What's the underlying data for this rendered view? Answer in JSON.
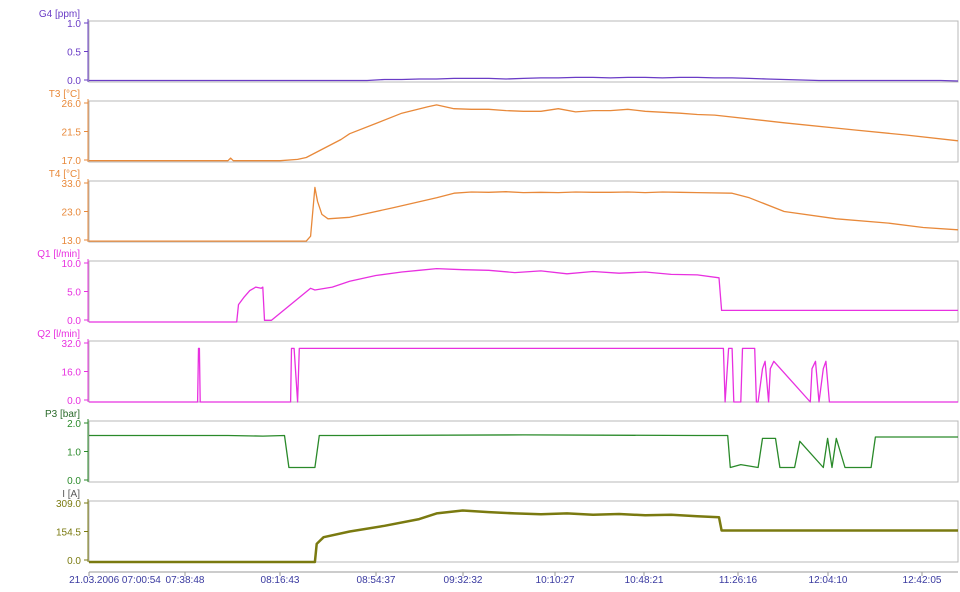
{
  "chart_data": [
    {
      "type": "line",
      "ylabel": "G4 [ppm]",
      "y_ticks": [
        "1.0",
        "0.5",
        "0.0"
      ],
      "ylim": [
        0,
        1.2
      ],
      "color": "#6a3cc6",
      "x": [
        0,
        20,
        40,
        60,
        80,
        100,
        120,
        140,
        150,
        160,
        180,
        200,
        220,
        240,
        260,
        280,
        300,
        320,
        340,
        360,
        380,
        400,
        420,
        440,
        460,
        480,
        500,
        520,
        540,
        560,
        580,
        600,
        620,
        640,
        660,
        680,
        700,
        720,
        740,
        760,
        780,
        800,
        820,
        840,
        860,
        880,
        900,
        920,
        940,
        960,
        980,
        1000
      ],
      "values": [
        0.03,
        0.03,
        0.03,
        0.03,
        0.03,
        0.03,
        0.03,
        0.03,
        0.03,
        0.03,
        0.03,
        0.03,
        0.03,
        0.03,
        0.03,
        0.03,
        0.03,
        0.03,
        0.05,
        0.05,
        0.06,
        0.06,
        0.07,
        0.07,
        0.07,
        0.06,
        0.07,
        0.08,
        0.08,
        0.09,
        0.09,
        0.08,
        0.09,
        0.09,
        0.08,
        0.09,
        0.09,
        0.08,
        0.08,
        0.07,
        0.06,
        0.05,
        0.04,
        0.03,
        0.03,
        0.03,
        0.03,
        0.03,
        0.03,
        0.03,
        0.03,
        0.02
      ]
    },
    {
      "type": "line",
      "ylabel": "T3 [°C]",
      "y_ticks": [
        "26.0",
        "21.5",
        "17.0"
      ],
      "ylim": [
        17,
        26.5
      ],
      "color": "#e8893a",
      "x": [
        0,
        100,
        160,
        163,
        166,
        180,
        220,
        240,
        250,
        290,
        300,
        330,
        360,
        390,
        400,
        420,
        440,
        460,
        480,
        500,
        520,
        540,
        560,
        580,
        600,
        620,
        640,
        680,
        700,
        720,
        800,
        880,
        940,
        1000
      ],
      "values": [
        17.2,
        17.2,
        17.2,
        17.6,
        17.2,
        17.2,
        17.2,
        17.4,
        17.7,
        20.5,
        21.4,
        23.0,
        24.6,
        25.6,
        25.9,
        25.3,
        25.2,
        25.2,
        25.0,
        24.9,
        24.9,
        25.3,
        24.8,
        25.0,
        25.0,
        25.2,
        24.9,
        24.6,
        24.4,
        24.3,
        23.1,
        22.0,
        21.2,
        20.3
      ]
    },
    {
      "type": "line",
      "ylabel": "T4 [°C]",
      "y_ticks": [
        "33.0",
        "23.0",
        "13.0"
      ],
      "ylim": [
        13,
        34
      ],
      "color": "#e8893a",
      "x": [
        0,
        100,
        200,
        250,
        255,
        260,
        263,
        268,
        275,
        300,
        350,
        400,
        420,
        440,
        460,
        480,
        500,
        520,
        540,
        560,
        580,
        600,
        620,
        640,
        660,
        680,
        700,
        740,
        760,
        800,
        860,
        920,
        960,
        1000
      ],
      "values": [
        13.3,
        13.3,
        13.3,
        13.3,
        15.0,
        31.8,
        27.0,
        22.5,
        21.0,
        21.5,
        24.8,
        28.2,
        29.8,
        30.2,
        30.1,
        30.3,
        30.0,
        30.1,
        30.0,
        30.2,
        30.1,
        30.1,
        30.2,
        30.0,
        30.2,
        30.1,
        30.0,
        29.8,
        28.2,
        23.5,
        21.0,
        19.5,
        18.0,
        17.2
      ]
    },
    {
      "type": "line",
      "ylabel": "Q1 [l/min]",
      "y_ticks": [
        "10.0",
        "5.0",
        "0.0"
      ],
      "ylim": [
        0,
        10.5
      ],
      "color": "#e830e0",
      "x": [
        0,
        170,
        172,
        178,
        185,
        192,
        198,
        200,
        202,
        204,
        210,
        255,
        260,
        280,
        300,
        330,
        360,
        380,
        400,
        430,
        460,
        490,
        520,
        550,
        580,
        610,
        640,
        670,
        700,
        725,
        728,
        730,
        780,
        880,
        1000
      ],
      "values": [
        0,
        0,
        3.0,
        4.2,
        5.4,
        6.0,
        5.8,
        6.0,
        0.3,
        0.3,
        0.3,
        5.8,
        5.5,
        6.0,
        7.0,
        8.0,
        8.6,
        8.9,
        9.2,
        9.0,
        8.9,
        8.5,
        8.8,
        8.3,
        8.7,
        8.4,
        8.6,
        8.2,
        8.1,
        7.6,
        2.0,
        2.0,
        2.0,
        2.0,
        2.0
      ]
    },
    {
      "type": "line",
      "ylabel": "Q2 [l/min]",
      "y_ticks": [
        "32.0",
        "16.0",
        "0.0"
      ],
      "ylim": [
        0,
        33
      ],
      "color": "#e830e0",
      "x": [
        0,
        125,
        126,
        127,
        128,
        232,
        233,
        236,
        240,
        242,
        245,
        248,
        730,
        732,
        736,
        740,
        742,
        750,
        752,
        766,
        768,
        770,
        775,
        778,
        782,
        784,
        788,
        830,
        832,
        836,
        840,
        845,
        848,
        852,
        855,
        1000
      ],
      "values": [
        0,
        0,
        29,
        29,
        0,
        0,
        29,
        29,
        0,
        29,
        29,
        29,
        29,
        0,
        29,
        29,
        0,
        0,
        29,
        29,
        0,
        0,
        18,
        22,
        0,
        18,
        22,
        0,
        18,
        22,
        0,
        18,
        22,
        0,
        0,
        0
      ]
    },
    {
      "type": "line",
      "ylabel": "P3 [bar]",
      "y_ticks": [
        "2.0",
        "1.0",
        "0.0"
      ],
      "ylim": [
        0,
        2.1
      ],
      "color": "#2a8a2a",
      "x": [
        0,
        160,
        200,
        225,
        230,
        260,
        265,
        300,
        500,
        700,
        735,
        738,
        750,
        770,
        775,
        790,
        795,
        812,
        818,
        845,
        850,
        855,
        860,
        870,
        880,
        900,
        905,
        950,
        1000
      ],
      "values": [
        1.6,
        1.6,
        1.58,
        1.6,
        0.5,
        0.5,
        1.6,
        1.6,
        1.62,
        1.6,
        1.6,
        0.5,
        0.6,
        0.5,
        1.5,
        1.5,
        0.5,
        0.5,
        1.4,
        0.5,
        1.5,
        0.5,
        1.5,
        0.5,
        0.5,
        0.5,
        1.55,
        1.55,
        1.55
      ]
    },
    {
      "type": "line",
      "ylabel": "I [A]",
      "y_ticks": [
        "309.0",
        "154.5",
        "0.0"
      ],
      "ylim": [
        0,
        320
      ],
      "color": "#7a7a10",
      "x": [
        0,
        260,
        262,
        270,
        300,
        340,
        380,
        400,
        430,
        460,
        490,
        520,
        550,
        580,
        610,
        640,
        670,
        700,
        725,
        728,
        780,
        880,
        1000
      ],
      "values": [
        0,
        0,
        95,
        130,
        160,
        190,
        225,
        255,
        270,
        262,
        255,
        250,
        255,
        248,
        252,
        245,
        248,
        240,
        235,
        165,
        165,
        165,
        165
      ]
    }
  ],
  "x_axis": {
    "tick_labels": [
      "21.03.2006 07:00:54",
      "07:38:48",
      "08:16:43",
      "08:54:37",
      "09:32:32",
      "10:10:27",
      "10:48:21",
      "11:26:16",
      "12:04:10",
      "12:42:05"
    ]
  }
}
